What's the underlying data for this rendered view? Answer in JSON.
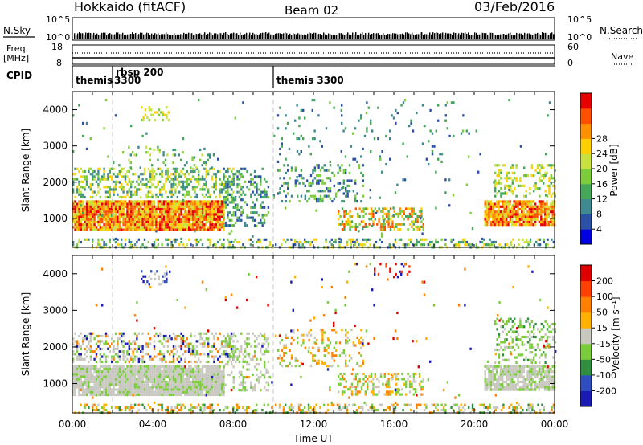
{
  "header": {
    "title": "Hokkaido (fitACF)",
    "beam": "Beam 02",
    "date": "03/Feb/2016"
  },
  "panels": {
    "nsky": {
      "label": "N.Sky",
      "tick_top": "10^5",
      "tick_bottom": "10^0",
      "right_tick_top": "10^5",
      "right_tick_bottom": "10^0",
      "right_label": "N.Search"
    },
    "freq": {
      "label_line1": "Freq.",
      "label_line2": "[MHz]",
      "tick_top": "18",
      "tick_bottom": "8",
      "right_tick_top": "60",
      "right_tick_bottom": "0",
      "right_label": "Nave"
    },
    "cpid": {
      "label": "CPID",
      "segments": [
        {
          "label": "themis",
          "start_hour": 0
        },
        {
          "label": "rbsp 200",
          "start_hour": 1.8
        },
        {
          "label": "3300",
          "start_hour": 1.8
        },
        {
          "label": "themis 3300",
          "start_hour": 10.0
        }
      ]
    }
  },
  "chart_data": [
    {
      "type": "heatmap",
      "name": "power",
      "ylabel": "Slant Range [km]",
      "ylim": [
        200,
        4500
      ],
      "yticks": [
        "1000",
        "2000",
        "3000",
        "4000"
      ],
      "xlim_hours": [
        0,
        24
      ],
      "colorbar": {
        "label": "Power [dB]",
        "ticks": [
          "4",
          "8",
          "12",
          "16",
          "20",
          "24",
          "28"
        ],
        "colors": [
          "#0000e0",
          "#2c52a8",
          "#3f8a90",
          "#44a858",
          "#7ccc3c",
          "#c8e040",
          "#ffd000",
          "#ff9000",
          "#ff5000",
          "#e80000"
        ]
      }
    },
    {
      "type": "heatmap",
      "name": "velocity",
      "ylabel": "Slant Range [km]",
      "ylim": [
        200,
        4500
      ],
      "yticks": [
        "1000",
        "2000",
        "3000",
        "4000"
      ],
      "xlim_hours": [
        0,
        24
      ],
      "colorbar": {
        "label": "Velocity [m s⁻¹]",
        "ticks": [
          "200",
          "100",
          "50",
          "15",
          "-15",
          "-50",
          "-100",
          "-200"
        ],
        "colors": [
          "#1a1ab4",
          "#2f4fc0",
          "#2f8f3f",
          "#7acc3a",
          "#c8c8c0",
          "#ffb000",
          "#ff8000",
          "#ff4000",
          "#e00000"
        ]
      }
    }
  ],
  "xaxis": {
    "label": "Time UT",
    "ticks": [
      "00:00",
      "04:00",
      "08:00",
      "12:00",
      "16:00",
      "20:00",
      "00:00"
    ]
  }
}
